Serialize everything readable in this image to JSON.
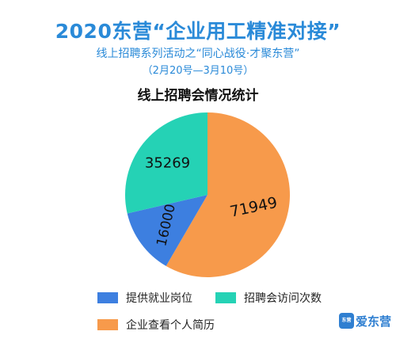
{
  "header": {
    "title": "2020东营“企业用工精准对接”",
    "subtitle": "线上招聘系列活动之“同心战役·才聚东营”",
    "date_range": "（2月20号—3月10号）"
  },
  "chart_data": {
    "type": "pie",
    "title": "线上招聘会情况统计",
    "slices": [
      {
        "label": "企业查看个人简历",
        "value": 71949,
        "color": "#f79a4b"
      },
      {
        "label": "提供就业岗位",
        "value": 16000,
        "color": "#3d7fe0"
      },
      {
        "label": "招聘会访问次数",
        "value": 35269,
        "color": "#25d2b5"
      }
    ],
    "legend_order": [
      "提供就业岗位",
      "招聘会访问次数",
      "企业查看个人简历"
    ]
  },
  "logo": {
    "box_text": "东营",
    "brand_text": "爱东营"
  }
}
